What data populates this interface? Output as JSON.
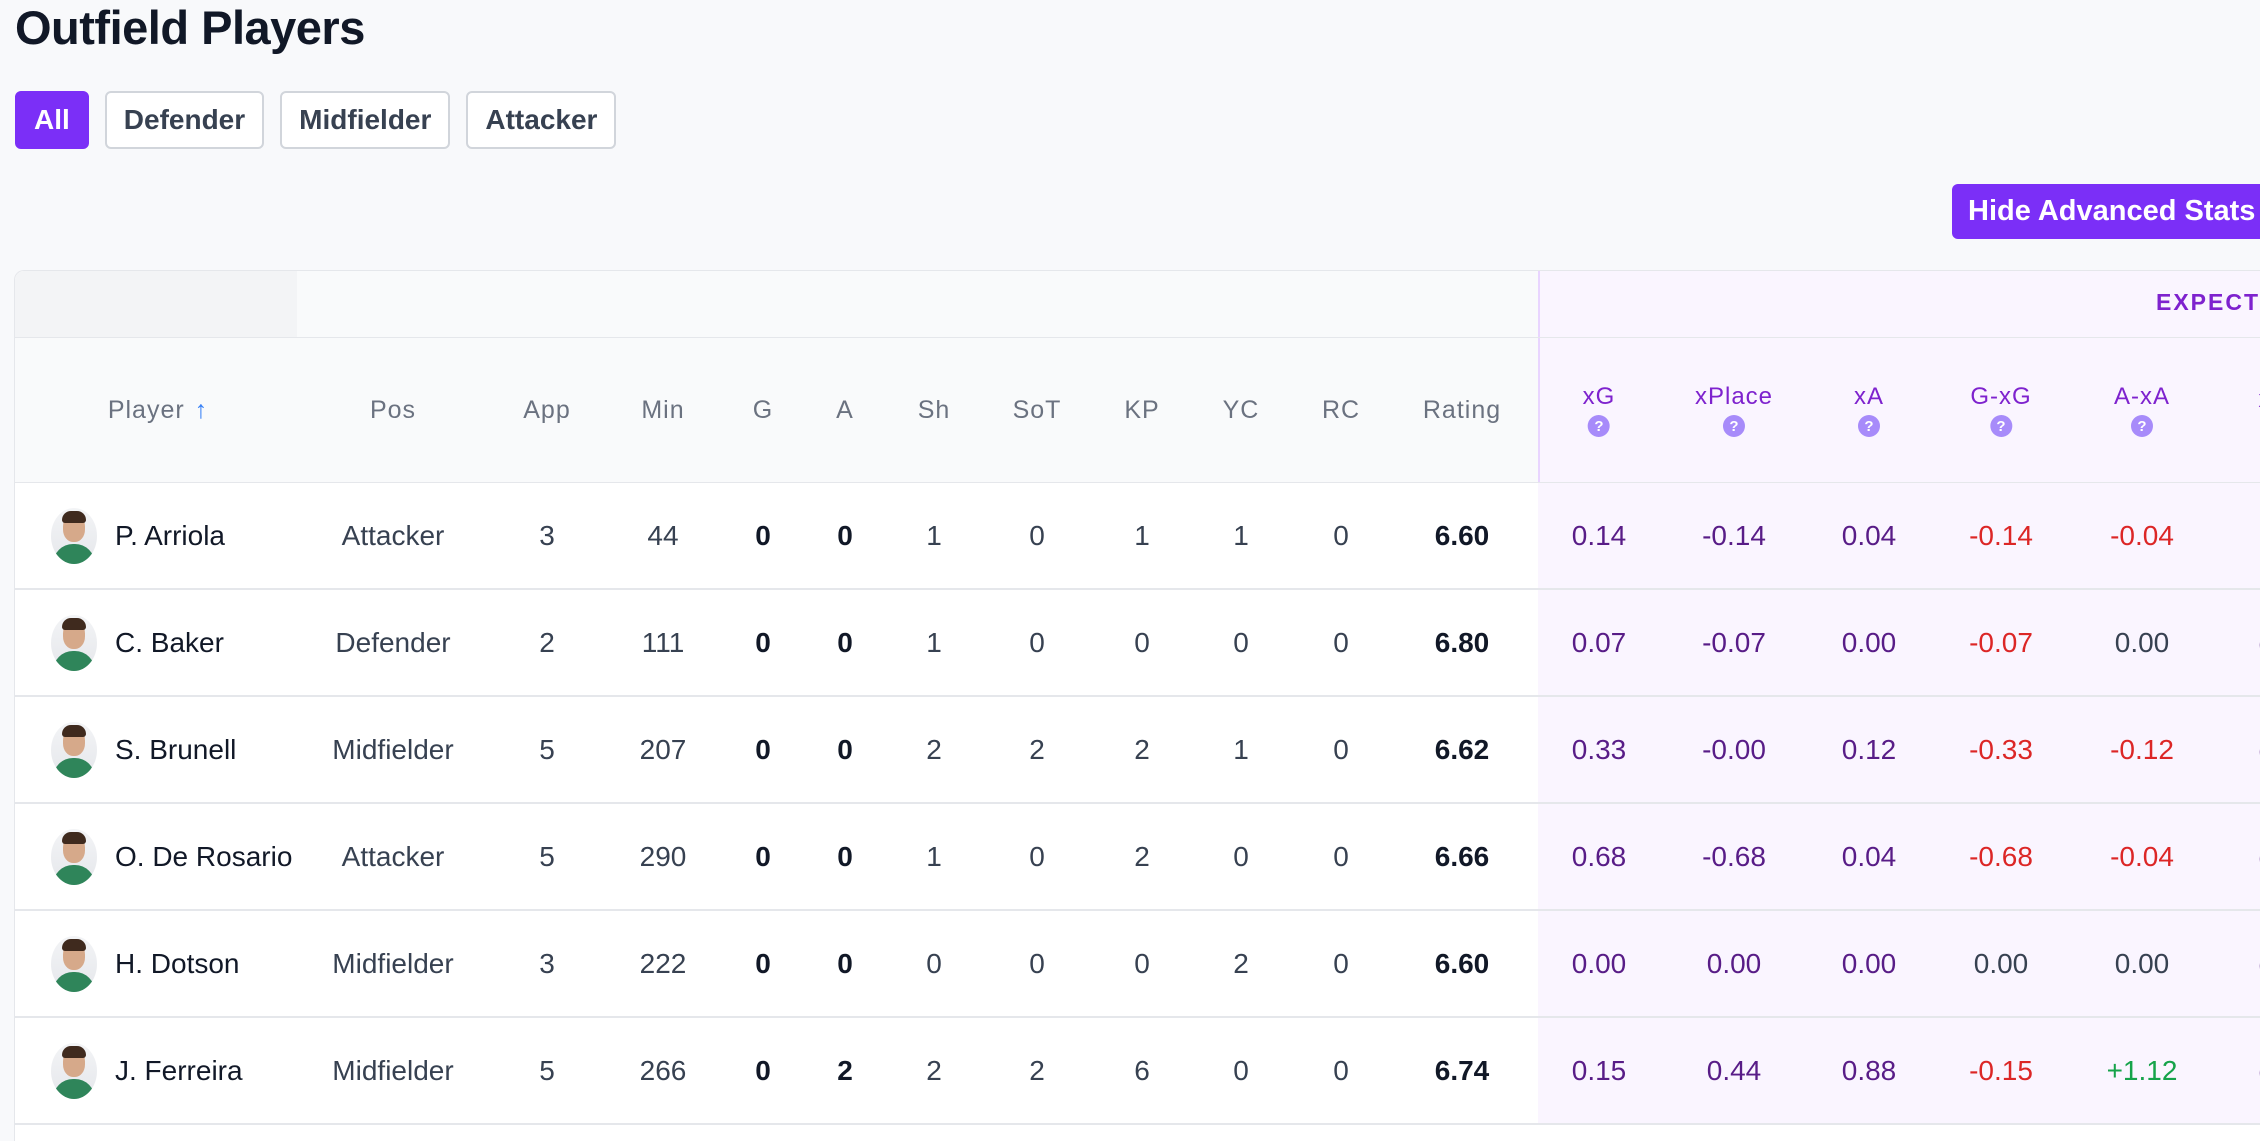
{
  "page": {
    "title": "Outfield Players",
    "filters": [
      "All",
      "Defender",
      "Midfielder",
      "Attacker"
    ],
    "active_filter": "All",
    "advanced_button": "Hide Advanced Stats"
  },
  "table": {
    "group_label": "EXPECT",
    "headers": {
      "player": "Player",
      "sort_icon": "↑",
      "pos": "Pos",
      "app": "App",
      "min": "Min",
      "g": "G",
      "a": "A",
      "sh": "Sh",
      "sot": "SoT",
      "kp": "KP",
      "yc": "YC",
      "rc": "RC",
      "rating": "Rating",
      "xg": "xG",
      "xplace": "xPlace",
      "xa": "xA",
      "gxg": "G-xG",
      "axa": "A-xA",
      "partial": "x",
      "help": "?"
    },
    "rows": [
      {
        "name": "P. Arriola",
        "pos": "Attacker",
        "app": "3",
        "min": "44",
        "g": "0",
        "a": "0",
        "sh": "1",
        "sot": "0",
        "kp": "1",
        "yc": "1",
        "rc": "0",
        "rating": "6.60",
        "xg": "0.14",
        "xplace": "-0.14",
        "xa": "0.04",
        "gxg": "-0.14",
        "axa": "-0.04",
        "partial": ""
      },
      {
        "name": "C. Baker",
        "pos": "Defender",
        "app": "2",
        "min": "111",
        "g": "0",
        "a": "0",
        "sh": "1",
        "sot": "0",
        "kp": "0",
        "yc": "0",
        "rc": "0",
        "rating": "6.80",
        "xg": "0.07",
        "xplace": "-0.07",
        "xa": "0.00",
        "gxg": "-0.07",
        "axa": "0.00",
        "partial": "("
      },
      {
        "name": "S. Brunell",
        "pos": "Midfielder",
        "app": "5",
        "min": "207",
        "g": "0",
        "a": "0",
        "sh": "2",
        "sot": "2",
        "kp": "2",
        "yc": "1",
        "rc": "0",
        "rating": "6.62",
        "xg": "0.33",
        "xplace": "-0.00",
        "xa": "0.12",
        "gxg": "-0.33",
        "axa": "-0.12",
        "partial": "("
      },
      {
        "name": "O. De Rosario",
        "pos": "Attacker",
        "app": "5",
        "min": "290",
        "g": "0",
        "a": "0",
        "sh": "1",
        "sot": "0",
        "kp": "2",
        "yc": "0",
        "rc": "0",
        "rating": "6.66",
        "xg": "0.68",
        "xplace": "-0.68",
        "xa": "0.04",
        "gxg": "-0.68",
        "axa": "-0.04",
        "partial": "("
      },
      {
        "name": "H. Dotson",
        "pos": "Midfielder",
        "app": "3",
        "min": "222",
        "g": "0",
        "a": "0",
        "sh": "0",
        "sot": "0",
        "kp": "0",
        "yc": "2",
        "rc": "0",
        "rating": "6.60",
        "xg": "0.00",
        "xplace": "0.00",
        "xa": "0.00",
        "gxg": "0.00",
        "axa": "0.00",
        "partial": "("
      },
      {
        "name": "J. Ferreira",
        "pos": "Midfielder",
        "app": "5",
        "min": "266",
        "g": "0",
        "a": "2",
        "sh": "2",
        "sot": "2",
        "kp": "6",
        "yc": "0",
        "rc": "0",
        "rating": "6.74",
        "xg": "0.15",
        "xplace": "0.44",
        "xa": "0.88",
        "gxg": "-0.15",
        "axa": "+1.12",
        "partial": "("
      }
    ]
  },
  "colors": {
    "accent": "#7b2ff7",
    "negative": "#dc2626",
    "positive": "#16a34a",
    "advanced_text": "#581c87"
  }
}
